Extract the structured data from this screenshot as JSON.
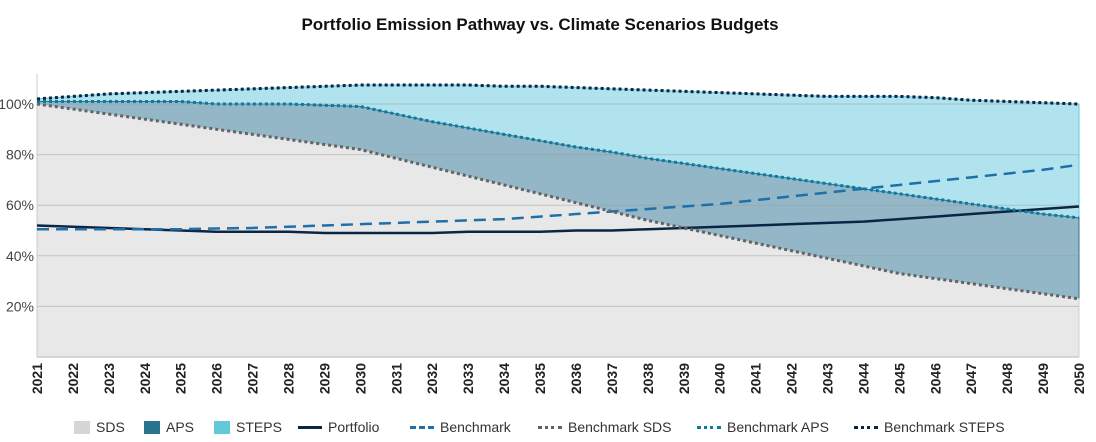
{
  "chart_data": {
    "type": "area",
    "title": "Portfolio Emission Pathway vs. Climate Scenarios Budgets",
    "xlabel": "",
    "ylabel": "",
    "ylim": [
      0,
      110
    ],
    "yticks": [
      "20%",
      "40%",
      "60%",
      "80%",
      "100%"
    ],
    "ytick_values": [
      20,
      40,
      60,
      80,
      100
    ],
    "grid": true,
    "legend_position": "bottom",
    "x": [
      "2021",
      "2022",
      "2023",
      "2024",
      "2025",
      "2026",
      "2027",
      "2028",
      "2029",
      "2030",
      "2031",
      "2032",
      "2033",
      "2034",
      "2035",
      "2036",
      "2037",
      "2038",
      "2039",
      "2040",
      "2041",
      "2042",
      "2043",
      "2044",
      "2045",
      "2046",
      "2047",
      "2048",
      "2049",
      "2050"
    ],
    "series": [
      {
        "name": "SDS",
        "kind": "area",
        "color": "#d9d9d9",
        "values": [
          100,
          98,
          96,
          94,
          92,
          90,
          88,
          86,
          84,
          82,
          78.5,
          75,
          71.5,
          68,
          64.5,
          61,
          57.5,
          54,
          51,
          48,
          45,
          42,
          39,
          36,
          33,
          31,
          29,
          27,
          25,
          23
        ]
      },
      {
        "name": "APS",
        "kind": "area",
        "color": "#2b7490",
        "values": [
          101,
          101,
          101,
          101,
          101,
          100,
          100,
          100,
          99.5,
          99,
          96,
          93,
          90.5,
          88,
          85.5,
          83,
          81,
          78.5,
          76.5,
          74.5,
          72.5,
          70.5,
          68.5,
          66.5,
          64.5,
          62.5,
          60.5,
          58.5,
          56.5,
          55
        ]
      },
      {
        "name": "STEPS",
        "kind": "area",
        "color": "#62c9db",
        "values": [
          102,
          103,
          104,
          104.5,
          105,
          105.5,
          106,
          106.5,
          107,
          107.5,
          107.5,
          107.5,
          107.5,
          107,
          107,
          106.5,
          106,
          105.5,
          105,
          104.5,
          104,
          103.5,
          103,
          103,
          103,
          102.5,
          101.5,
          101,
          100.5,
          100
        ]
      },
      {
        "name": "Portfolio",
        "kind": "line",
        "color": "#0b2545",
        "dash": "solid",
        "values": [
          52,
          51.5,
          51,
          50.5,
          50,
          49.5,
          49.5,
          49.5,
          49,
          49,
          49,
          49,
          49.5,
          49.5,
          49.5,
          50,
          50,
          50.5,
          51,
          51.5,
          52,
          52.5,
          53,
          53.5,
          54.5,
          55.5,
          56.5,
          57.5,
          58.5,
          59.5
        ]
      },
      {
        "name": "Benchmark",
        "kind": "line",
        "color": "#1f6fa8",
        "dash": "long",
        "values": [
          50.5,
          50.5,
          50.5,
          50.5,
          50.5,
          50.8,
          51,
          51.5,
          52,
          52.5,
          53,
          53.5,
          54,
          54.5,
          55.5,
          56.5,
          57.5,
          58.5,
          59.5,
          60.5,
          62,
          63.5,
          65,
          66.5,
          68,
          69.5,
          71,
          72.5,
          74,
          76
        ]
      },
      {
        "name": "Benchmark SDS",
        "kind": "line",
        "color": "#5f6468",
        "dash": "dot",
        "values": [
          100,
          98,
          96,
          94,
          92,
          90,
          88,
          86,
          84,
          82,
          78.5,
          75,
          71.5,
          68,
          64.5,
          61,
          57.5,
          54,
          51,
          48,
          45,
          42,
          39,
          36,
          33,
          31,
          29,
          27,
          25,
          23
        ]
      },
      {
        "name": "Benchmark APS",
        "kind": "line",
        "color": "#0d7aa0",
        "dash": "dot",
        "values": [
          101,
          101,
          101,
          101,
          101,
          100,
          100,
          100,
          99.5,
          99,
          96,
          93,
          90.5,
          88,
          85.5,
          83,
          81,
          78.5,
          76.5,
          74.5,
          72.5,
          70.5,
          68.5,
          66.5,
          64.5,
          62.5,
          60.5,
          58.5,
          56.5,
          55
        ]
      },
      {
        "name": "Benchmark STEPS",
        "kind": "line",
        "color": "#0b2545",
        "dash": "dot",
        "values": [
          102,
          103,
          104,
          104.5,
          105,
          105.5,
          106,
          106.5,
          107,
          107.5,
          107.5,
          107.5,
          107.5,
          107,
          107,
          106.5,
          106,
          105.5,
          105,
          104.5,
          104,
          103.5,
          103,
          103,
          103,
          102.5,
          101.5,
          101,
          100.5,
          100
        ]
      }
    ]
  },
  "legend": [
    {
      "label": "SDS",
      "type": "swatch",
      "color": "#d6d6d6"
    },
    {
      "label": "APS",
      "type": "swatch",
      "color": "#2b7490"
    },
    {
      "label": "STEPS",
      "type": "swatch",
      "color": "#62c9db"
    },
    {
      "label": "Portfolio",
      "type": "solid",
      "color": "#0b2545"
    },
    {
      "label": "Benchmark",
      "type": "dash",
      "color": "#1f6fa8"
    },
    {
      "label": "Benchmark SDS",
      "type": "dot",
      "color": "#5f6468"
    },
    {
      "label": "Benchmark APS",
      "type": "dot",
      "color": "#0d7aa0"
    },
    {
      "label": "Benchmark STEPS",
      "type": "dot",
      "color": "#0b2545"
    }
  ]
}
